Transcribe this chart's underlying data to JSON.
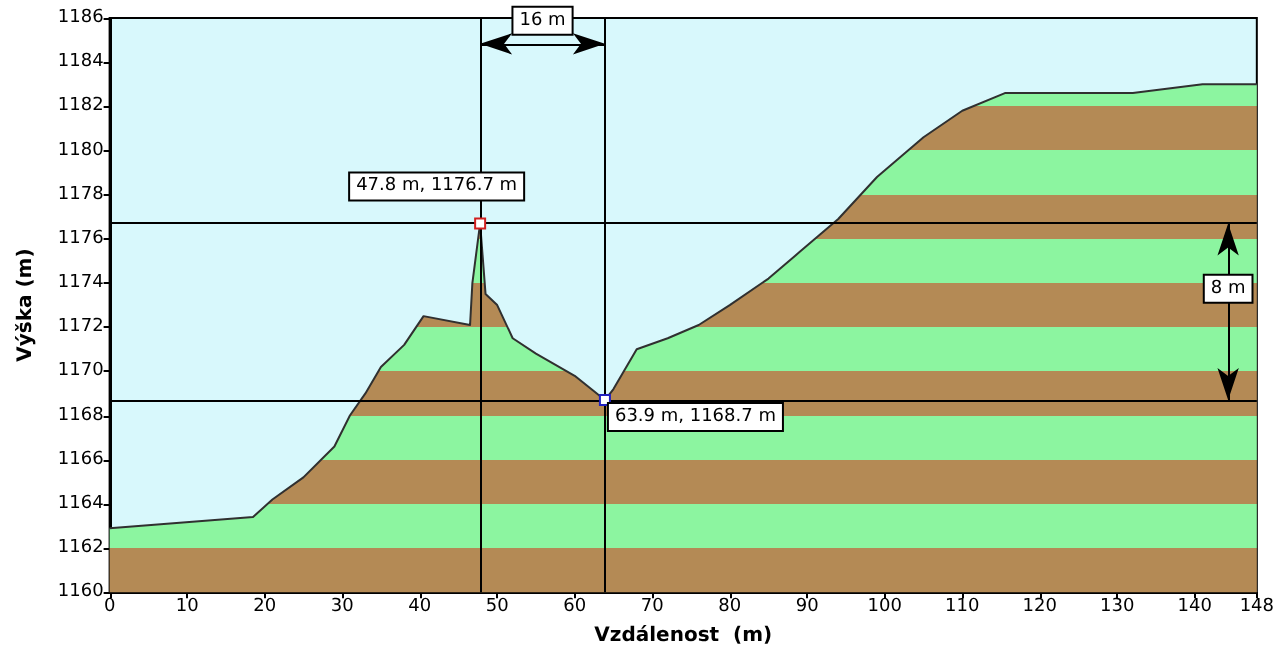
{
  "chart_data": {
    "type": "area",
    "xlabel": "Vzdálenost  (m)",
    "ylabel": "Výška (m)",
    "x": [
      0,
      18.5,
      21,
      25,
      29,
      31,
      33,
      35,
      38,
      40.5,
      46.5,
      46.8,
      47.8,
      48.5,
      50,
      52,
      55,
      60,
      63.9,
      65,
      68,
      72,
      76,
      80,
      85,
      89,
      94,
      99,
      105,
      110,
      115.5,
      132,
      141,
      148
    ],
    "series": [
      {
        "color": "#303030",
        "values": [
          1162.9,
          1163.4,
          1164.2,
          1165.2,
          1166.6,
          1168,
          1169,
          1170.2,
          1171.2,
          1172.5,
          1172.1,
          1174,
          1176.7,
          1173.5,
          1173,
          1171.5,
          1170.8,
          1169.8,
          1168.7,
          1169.2,
          1171,
          1171.5,
          1172.1,
          1173,
          1174.2,
          1175.4,
          1176.9,
          1178.8,
          1180.6,
          1181.8,
          1182.6,
          1182.6,
          1183,
          1183
        ]
      }
    ],
    "xlim": [
      0,
      148
    ],
    "xticks": [
      0,
      10,
      20,
      30,
      40,
      50,
      60,
      70,
      80,
      90,
      100,
      110,
      120,
      130,
      140,
      148
    ],
    "ylim": [
      1160,
      1186
    ],
    "yticks": [
      1160,
      1162,
      1164,
      1166,
      1168,
      1170,
      1172,
      1174,
      1176,
      1178,
      1180,
      1182,
      1184,
      1186
    ],
    "grid": false,
    "marker": "none",
    "ref_lines": [
      {
        "axis": "x",
        "value": 47.8,
        "color": "#000000"
      },
      {
        "axis": "x",
        "value": 63.9,
        "color": "#000000"
      },
      {
        "axis": "y",
        "value": 1176.7,
        "color": "#000000"
      },
      {
        "axis": "y",
        "value": 1168.7,
        "color": "#000000"
      }
    ],
    "annotations": [
      {
        "text": "47.8 m, 1176.7 m",
        "x": 47.8,
        "y": 1176.7
      },
      {
        "text": "63.9 m, 1168.7 m",
        "x": 63.9,
        "y": 1168.7
      },
      "16 m",
      "8 m"
    ]
  }
}
